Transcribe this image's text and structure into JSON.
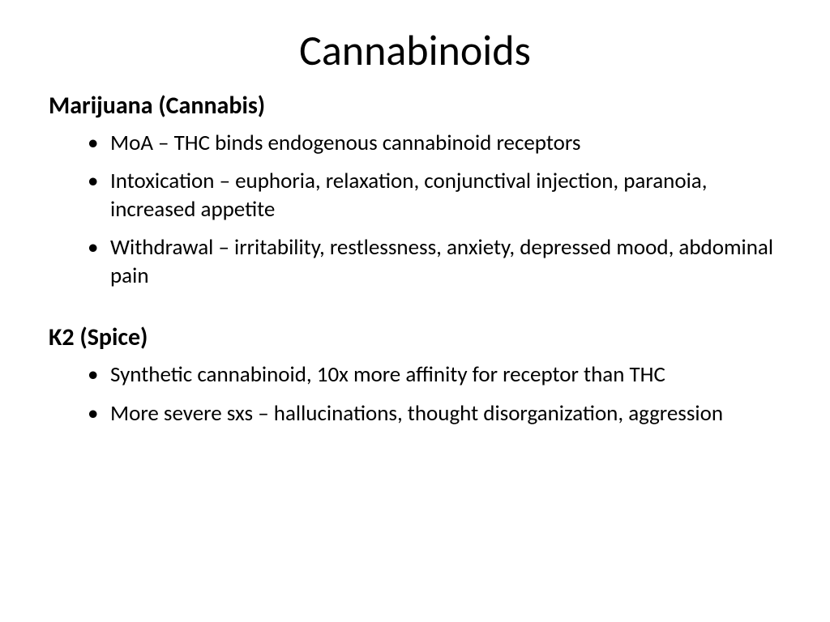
{
  "slide": {
    "title": "Cannabinoids",
    "background_color": "#ffffff",
    "text_color": "#000000",
    "title_fontsize": 52,
    "heading_fontsize": 30,
    "body_fontsize": 27,
    "sections": [
      {
        "heading": "Marijuana (Cannabis)",
        "bullets": [
          "MoA – THC binds endogenous cannabinoid receptors",
          "Intoxication – euphoria, relaxation, conjunctival injection, paranoia, increased appetite",
          "Withdrawal – irritability, restlessness, anxiety, depressed mood, abdominal pain"
        ]
      },
      {
        "heading": "K2 (Spice)",
        "bullets": [
          "Synthetic cannabinoid, 10x more affinity for receptor than THC",
          "More severe sxs – hallucinations, thought disorganization, aggression"
        ]
      }
    ]
  }
}
